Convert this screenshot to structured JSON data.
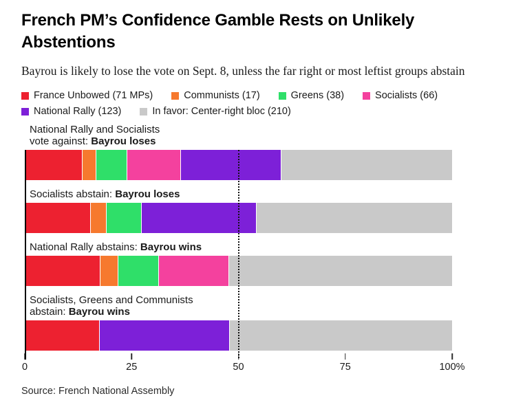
{
  "header": {
    "title": "French PM’s Confidence Gamble Rests on Unlikely Abstentions",
    "subtitle": "Bayrou is likely to lose the vote on Sept. 8, unless the far right or most leftist groups abstain"
  },
  "source_note": "Source: French National Assembly",
  "colors": {
    "france_unbowed": "#ed2130",
    "communists": "#f6792e",
    "greens": "#2fdf69",
    "socialists": "#f4419e",
    "national_rally": "#7d20d8",
    "center_right": "#c9c9c9",
    "reference_line": "#111111",
    "axis": "#000000"
  },
  "chart_data": {
    "type": "bar",
    "stacked": true,
    "orientation": "horizontal",
    "unit": "% of votes cast",
    "xlim": [
      0,
      100
    ],
    "grid": false,
    "reference_line": 50,
    "legend_position": "top",
    "parties": [
      {
        "id": "france_unbowed",
        "name": "France Unbowed",
        "mps": 71,
        "legend_label": "France Unbowed (71 MPs)",
        "color": "#ed2130"
      },
      {
        "id": "communists",
        "name": "Communists",
        "mps": 17,
        "legend_label": "Communists (17)",
        "color": "#f6792e"
      },
      {
        "id": "greens",
        "name": "Greens",
        "mps": 38,
        "legend_label": "Greens (38)",
        "color": "#2fdf69"
      },
      {
        "id": "socialists",
        "name": "Socialists",
        "mps": 66,
        "legend_label": "Socialists (66)",
        "color": "#f4419e"
      },
      {
        "id": "national_rally",
        "name": "National Rally",
        "mps": 123,
        "legend_label": "National Rally (123)",
        "color": "#7d20d8"
      },
      {
        "id": "center_right",
        "name": "In favor: Center-right bloc",
        "mps": 210,
        "legend_label": "In favor: Center-right bloc (210)",
        "color": "#c9c9c9"
      }
    ],
    "scenarios": [
      {
        "label_regular": "National Rally and Socialists\nvote against: ",
        "label_bold": "Bayrou loses",
        "segments": [
          {
            "party": "france_unbowed",
            "mps": 71,
            "pct": 13.5
          },
          {
            "party": "communists",
            "mps": 17,
            "pct": 3.2
          },
          {
            "party": "greens",
            "mps": 38,
            "pct": 7.2
          },
          {
            "party": "socialists",
            "mps": 66,
            "pct": 12.6
          },
          {
            "party": "national_rally",
            "mps": 123,
            "pct": 23.4
          },
          {
            "party": "center_right",
            "mps": 210,
            "pct": 40.0
          }
        ]
      },
      {
        "label_regular": "Socialists abstain: ",
        "label_bold": "Bayrou loses",
        "segments": [
          {
            "party": "france_unbowed",
            "mps": 71,
            "pct": 15.5
          },
          {
            "party": "communists",
            "mps": 17,
            "pct": 3.7
          },
          {
            "party": "greens",
            "mps": 38,
            "pct": 8.3
          },
          {
            "party": "national_rally",
            "mps": 123,
            "pct": 26.8
          },
          {
            "party": "center_right",
            "mps": 210,
            "pct": 45.8
          }
        ]
      },
      {
        "label_regular": "National Rally abstains: ",
        "label_bold": "Bayrou wins",
        "segments": [
          {
            "party": "france_unbowed",
            "mps": 71,
            "pct": 17.7
          },
          {
            "party": "communists",
            "mps": 17,
            "pct": 4.2
          },
          {
            "party": "greens",
            "mps": 38,
            "pct": 9.5
          },
          {
            "party": "socialists",
            "mps": 66,
            "pct": 16.4
          },
          {
            "party": "center_right",
            "mps": 210,
            "pct": 52.2
          }
        ]
      },
      {
        "label_regular": "Socialists, Greens and Communists\nabstain: ",
        "label_bold": "Bayrou wins",
        "segments": [
          {
            "party": "france_unbowed",
            "mps": 71,
            "pct": 17.6
          },
          {
            "party": "national_rally",
            "mps": 123,
            "pct": 30.4
          },
          {
            "party": "center_right",
            "mps": 210,
            "pct": 52.0
          }
        ]
      }
    ],
    "x_ticks": [
      {
        "value": 0,
        "label": "0"
      },
      {
        "value": 25,
        "label": "25"
      },
      {
        "value": 50,
        "label": "50"
      },
      {
        "value": 75,
        "label": "75"
      },
      {
        "value": 100,
        "label": "100%"
      }
    ]
  }
}
